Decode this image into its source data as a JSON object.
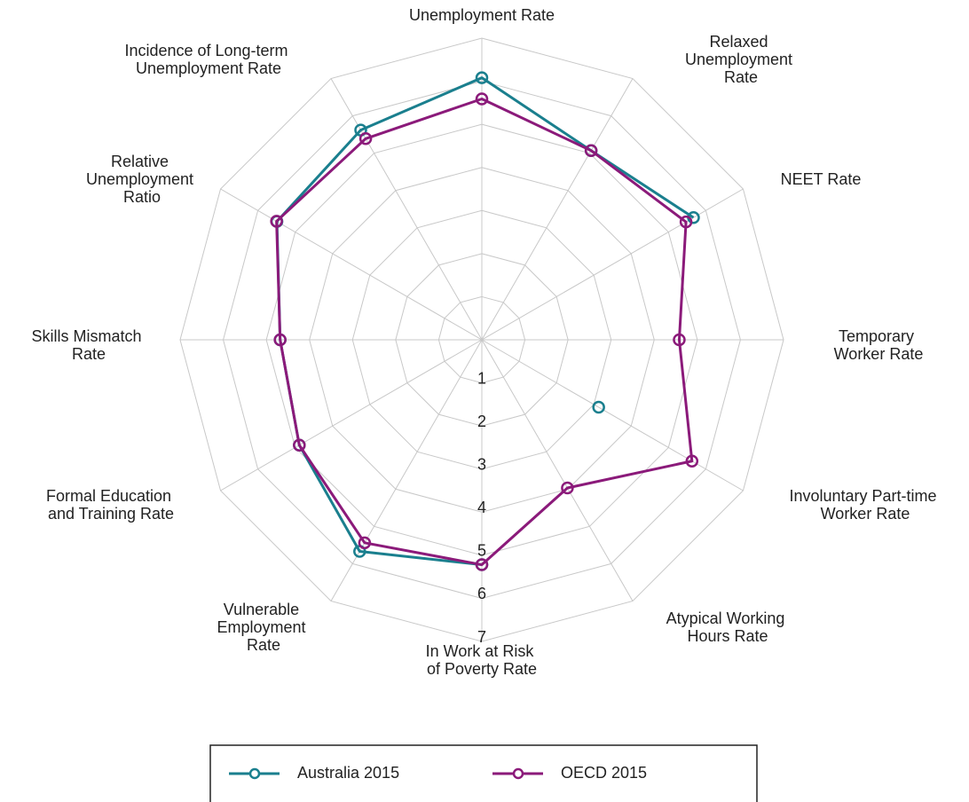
{
  "chart_data": {
    "type": "radar",
    "categories": [
      "Unemployment Rate",
      "Relaxed Unemployment Rate",
      "NEET Rate",
      "Temporary Worker Rate",
      "Involuntary Part-time Worker Rate",
      "Atypical Working Hours Rate",
      "In Work at Risk of Poverty Rate",
      "Vulnerable Employment Rate",
      "Formal Education and Training Rate",
      "Skills Mismatch Rate",
      "Relative Unemployment Ratio",
      "Incidence of Long-term Unemployment Rate"
    ],
    "series": [
      {
        "name": "Australia 2015",
        "color": "#1a7f8e",
        "values": [
          6.08,
          5.07,
          5.67,
          null,
          3.13,
          null,
          5.22,
          5.67,
          4.89,
          4.68,
          5.49,
          5.62
        ]
      },
      {
        "name": "OECD 2015",
        "color": "#8b1a7a",
        "values": [
          5.59,
          5.07,
          5.47,
          4.58,
          5.63,
          3.97,
          5.22,
          5.44,
          4.89,
          4.68,
          5.5,
          5.39
        ]
      }
    ],
    "ylim": [
      0,
      7
    ],
    "yticks": [
      1,
      2,
      3,
      4,
      5,
      6,
      7
    ],
    "grid": true,
    "legend": "bottom"
  }
}
